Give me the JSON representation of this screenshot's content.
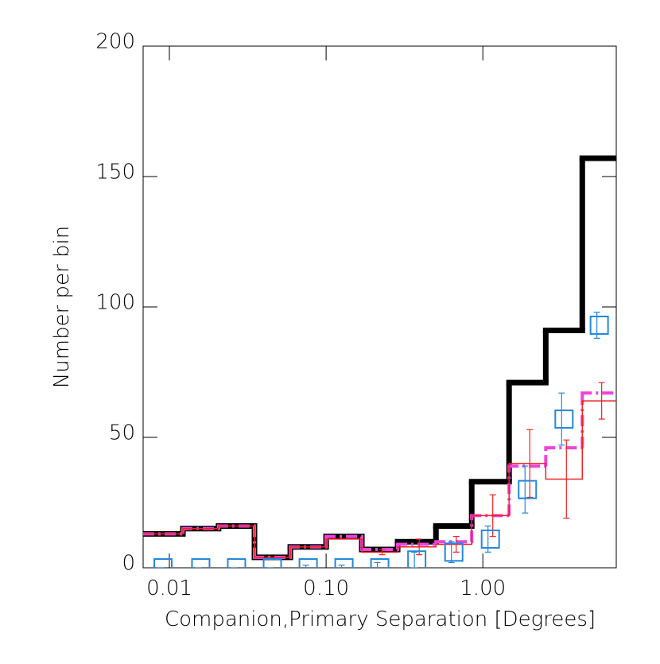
{
  "chart_data": {
    "type": "histogram",
    "xlabel": "Companion,Primary Separation [Degrees]",
    "ylabel": "Number per bin",
    "log_x": true,
    "xlim": [
      0.0068,
      7.1
    ],
    "ylim": [
      0,
      200
    ],
    "xticks": [
      {
        "value": 0.01,
        "label": "0.01"
      },
      {
        "value": 0.1,
        "label": "0.10"
      },
      {
        "value": 1,
        "label": "1.00"
      }
    ],
    "yticks": [
      0,
      50,
      100,
      150,
      200
    ],
    "bins": [
      0.0068,
      0.0122,
      0.0206,
      0.0349,
      0.0591,
      0.1,
      0.169,
      0.286,
      0.502,
      0.849,
      1.47,
      2.52,
      4.31,
      7.1
    ],
    "series": [
      {
        "style": "step",
        "color": "#000000",
        "width": 7,
        "values": [
          13,
          15,
          16,
          4,
          8,
          12,
          7,
          10,
          16,
          33,
          71,
          91,
          157
        ]
      },
      {
        "style": "step",
        "color": "#ee44dd",
        "width": 4,
        "dash": true,
        "values": [
          13,
          15,
          16,
          4,
          8,
          12,
          7,
          9,
          10,
          20,
          39,
          46,
          67
        ]
      },
      {
        "style": "step",
        "color": "#ee2222",
        "width": 1.5,
        "values": [
          13,
          15,
          16,
          4,
          8,
          11,
          6,
          8,
          9,
          20,
          40,
          34,
          64
        ],
        "errors": [
          0,
          0,
          0,
          0,
          0,
          0,
          1,
          3,
          3,
          8,
          13,
          15,
          7
        ]
      },
      {
        "style": "square",
        "color": "#2288dd",
        "values": [
          0,
          0,
          0,
          0,
          0,
          0,
          0,
          3,
          6,
          11,
          30,
          57,
          93
        ],
        "errors": [
          0,
          0,
          0,
          0,
          1,
          1,
          2,
          3,
          4,
          5,
          9,
          10,
          5
        ]
      }
    ]
  }
}
